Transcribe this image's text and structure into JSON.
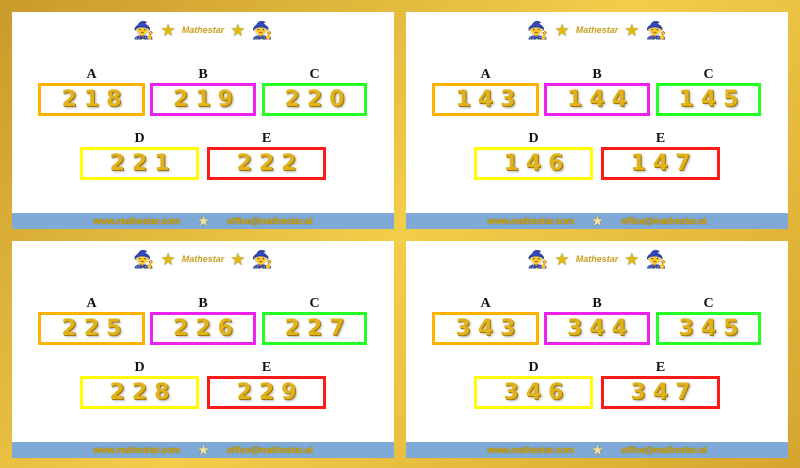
{
  "brand": "Mathestar",
  "footer": {
    "website": "www.mathestar.com",
    "email": "office@mathestar.at"
  },
  "colors": {
    "A": "#ffb300",
    "B": "#ee22ee",
    "C": "#22ff22",
    "D": "#ffff00",
    "E": "#ff1a1a"
  },
  "panels": [
    {
      "options": [
        {
          "label": "A",
          "value": "218"
        },
        {
          "label": "B",
          "value": "219"
        },
        {
          "label": "C",
          "value": "220"
        },
        {
          "label": "D",
          "value": "221"
        },
        {
          "label": "E",
          "value": "222"
        }
      ]
    },
    {
      "options": [
        {
          "label": "A",
          "value": "143"
        },
        {
          "label": "B",
          "value": "144"
        },
        {
          "label": "C",
          "value": "145"
        },
        {
          "label": "D",
          "value": "146"
        },
        {
          "label": "E",
          "value": "147"
        }
      ]
    },
    {
      "options": [
        {
          "label": "A",
          "value": "225"
        },
        {
          "label": "B",
          "value": "226"
        },
        {
          "label": "C",
          "value": "227"
        },
        {
          "label": "D",
          "value": "228"
        },
        {
          "label": "E",
          "value": "229"
        }
      ]
    },
    {
      "options": [
        {
          "label": "A",
          "value": "343"
        },
        {
          "label": "B",
          "value": "344"
        },
        {
          "label": "C",
          "value": "345"
        },
        {
          "label": "D",
          "value": "346"
        },
        {
          "label": "E",
          "value": "347"
        }
      ]
    }
  ]
}
